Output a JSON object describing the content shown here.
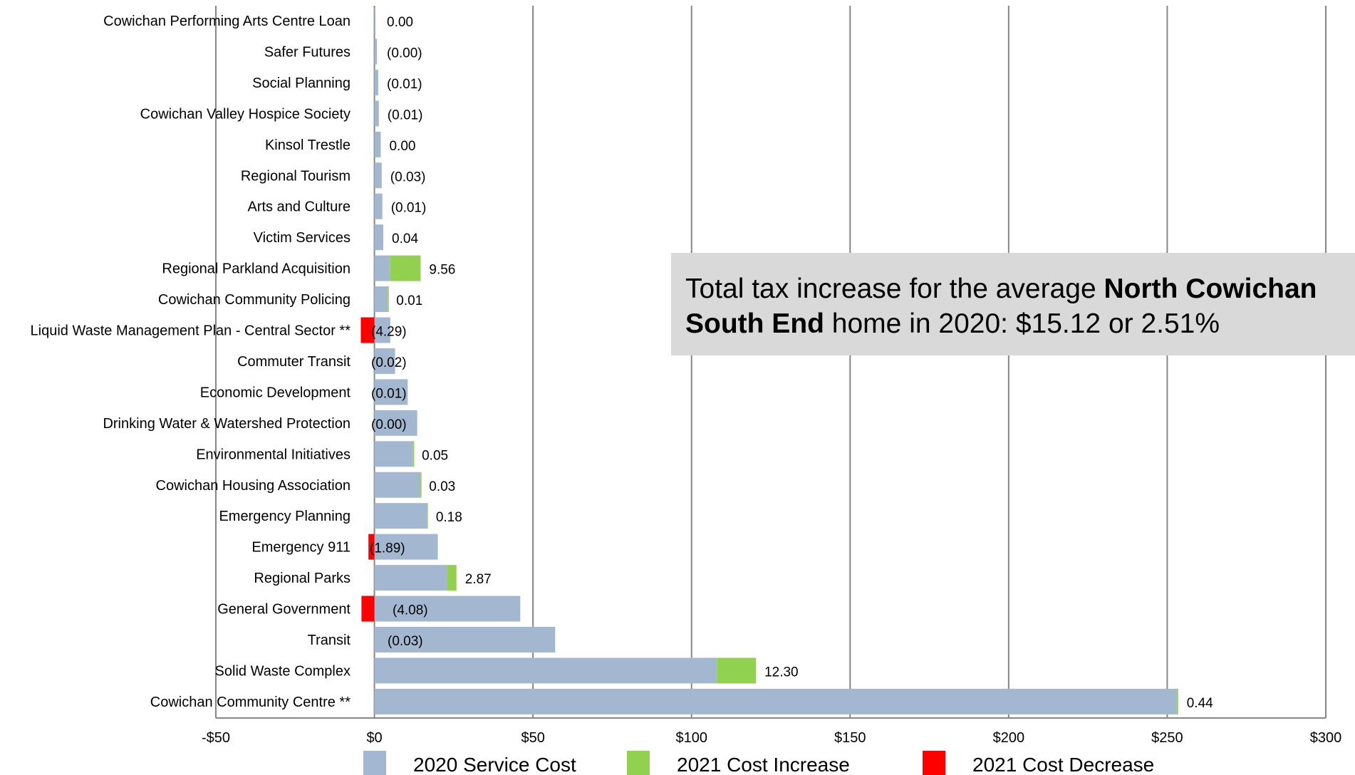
{
  "chart_data": {
    "type": "bar",
    "orientation": "horizontal",
    "stacked": true,
    "categories": [
      "Cowichan Performing Arts Centre Loan",
      "Safer Futures",
      "Social Planning",
      "Cowichan Valley Hospice Society",
      "Kinsol Trestle",
      "Regional Tourism",
      "Arts and Culture",
      "Victim Services",
      "Regional Parkland Acquisition",
      "Cowichan Community Policing",
      "Liquid Waste Management Plan - Central Sector **",
      "Commuter Transit",
      "Economic Development",
      "Drinking Water & Watershed Protection",
      "Environmental Initiatives",
      "Cowichan Housing Association",
      "Emergency Planning",
      "Emergency 911",
      "Regional Parks",
      "General Government",
      "Transit",
      "Solid Waste Complex",
      "Cowichan Community Centre  **"
    ],
    "series": [
      {
        "name": "2020 Service Cost",
        "color": "#a3b8d0",
        "values": [
          0.3,
          0.8,
          1.2,
          1.4,
          2.0,
          2.3,
          2.5,
          2.8,
          5.0,
          4.2,
          5.0,
          6.5,
          10.5,
          13.5,
          12.2,
          14.5,
          16.5,
          20.0,
          23.0,
          46.0,
          57.0,
          108.0,
          253.0
        ]
      },
      {
        "name": "2021 Cost Increase",
        "color": "#92d050",
        "values": [
          0,
          0,
          0,
          0,
          0,
          0,
          0,
          0,
          9.56,
          0.01,
          0,
          0,
          0,
          0,
          0.05,
          0.03,
          0.18,
          0,
          2.87,
          0,
          0,
          12.3,
          0.44
        ]
      },
      {
        "name": "2021 Cost Decrease",
        "color": "#ff0000",
        "values": [
          0,
          0,
          0,
          0,
          0,
          0,
          0,
          0,
          0,
          0,
          4.29,
          0.02,
          0.01,
          0,
          0,
          0,
          0,
          1.89,
          0,
          4.08,
          0.03,
          0,
          0
        ]
      }
    ],
    "data_labels": [
      "0.00",
      "(0.00)",
      "(0.01)",
      "(0.01)",
      "0.00",
      "(0.03)",
      "(0.01)",
      "0.04",
      "9.56",
      "0.01",
      "(4.29)",
      "(0.02)",
      "(0.01)",
      "(0.00)",
      "0.05",
      "0.03",
      "0.18",
      "(1.89)",
      "2.87",
      "(4.08)",
      "(0.03)",
      "12.30",
      "0.44"
    ],
    "xlim": [
      -50,
      300
    ],
    "x_ticks": [
      -50,
      0,
      50,
      100,
      150,
      200,
      250,
      300
    ],
    "x_tick_labels": [
      "-$50",
      "$0",
      "$50",
      "$100",
      "$150",
      "$200",
      "$250",
      "$300"
    ],
    "grid": "vertical",
    "legend_position": "bottom"
  },
  "callout": {
    "prefix": "Total tax increase for the average ",
    "bold": "North Cowichan South End",
    "suffix": " home in 2020: $15.12 or 2.51%"
  }
}
